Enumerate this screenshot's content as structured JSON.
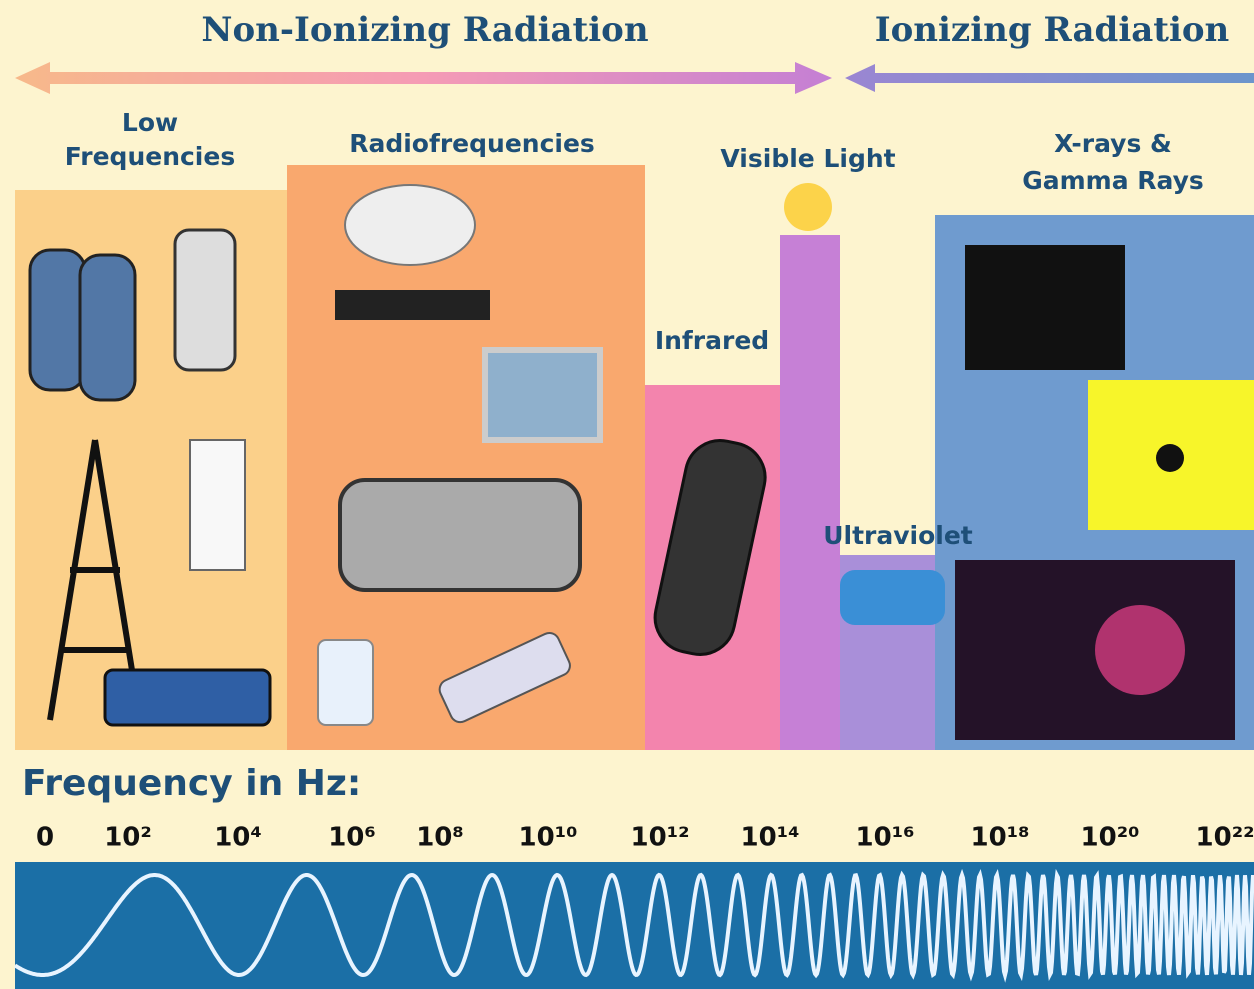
{
  "header": {
    "non_ionizing": "Non-Ionizing Radiation",
    "ionizing": "Ionizing Radiation"
  },
  "bands": {
    "low_frequencies": [
      "Low",
      "Frequencies"
    ],
    "radiofrequencies": "Radiofrequencies",
    "infrared": "Infrared",
    "visible_light": "Visible Light",
    "ultraviolet": "Ultraviolet",
    "xrays_gamma": [
      "X-rays &",
      "Gamma Rays"
    ]
  },
  "frequency": {
    "label": "Frequency in Hz:",
    "ticks": [
      "0",
      "10²",
      "10⁴",
      "10⁶",
      "10⁸",
      "10¹⁰",
      "10¹²",
      "10¹⁴",
      "10¹⁶",
      "10¹⁸",
      "10²⁰",
      "10²²"
    ]
  }
}
